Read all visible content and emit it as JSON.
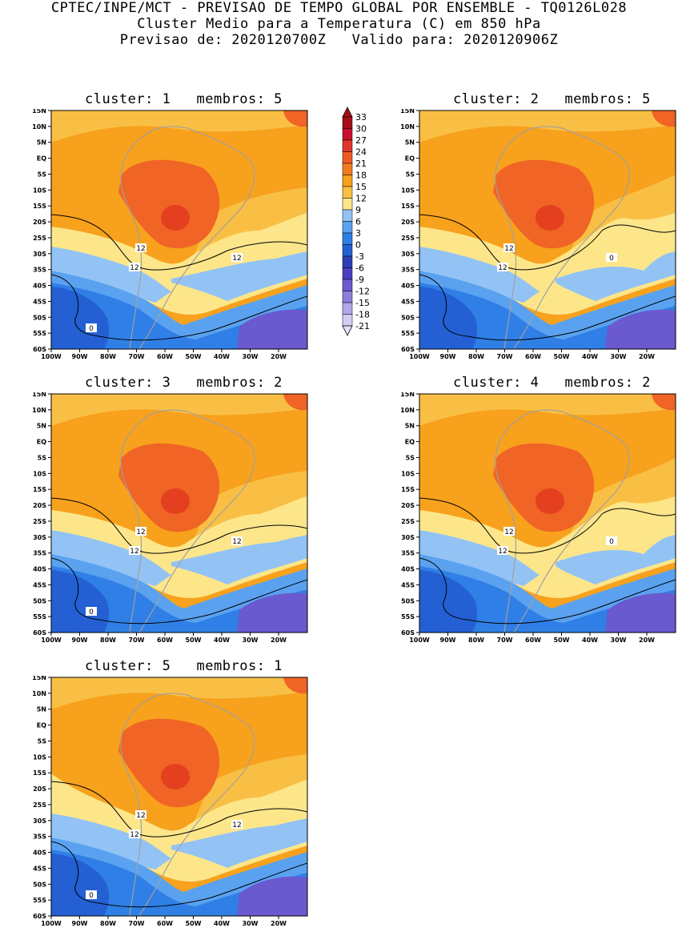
{
  "header": {
    "line1": "CPTEC/INPE/MCT - PREVISAO DE TEMPO GLOBAL POR ENSEMBLE - TQ0126L028",
    "line2": "Cluster Medio para a Temperatura (C) em 850 hPa",
    "line3": "Previsao de: 2020120700Z   Valido para: 2020120906Z"
  },
  "colorbar": {
    "labels": [
      "33",
      "30",
      "27",
      "24",
      "21",
      "18",
      "15",
      "12",
      "9",
      "6",
      "3",
      "0",
      "-3",
      "-6",
      "-9",
      "-12",
      "-15",
      "-18",
      "-21"
    ],
    "colors": [
      "#a50f15",
      "#c8102e",
      "#e0342b",
      "#f05a24",
      "#f47a1f",
      "#f7a11d",
      "#f9bf45",
      "#fde68a",
      "#93c3f5",
      "#5aa2f0",
      "#2f7fe6",
      "#2460d4",
      "#2a3fb6",
      "#4b3fbf",
      "#6a59cf",
      "#8b7fdc",
      "#b2a6ea",
      "#d4ccf4"
    ],
    "top_color": "#a50f15",
    "bottom_color": "#e5e0f8"
  },
  "axes": {
    "lat_labels": [
      "15N",
      "10N",
      "5N",
      "EQ",
      "5S",
      "10S",
      "15S",
      "20S",
      "25S",
      "30S",
      "35S",
      "40S",
      "45S",
      "50S",
      "55S",
      "60S"
    ],
    "lon_labels": [
      "100W",
      "90W",
      "80W",
      "70W",
      "60W",
      "50W",
      "40W",
      "30W",
      "20W"
    ]
  },
  "map_colors": {
    "hot_red": "#e44020",
    "red_orange": "#f06425",
    "orange": "#f7a11d",
    "light_orange": "#f9bf45",
    "yellow": "#fde68a",
    "light_blue": "#93c3f5",
    "blue": "#5aa2f0",
    "mid_blue": "#2f7fe6",
    "deep_blue": "#2460d4",
    "purple": "#6a59cf",
    "land": "#a0a0a0"
  },
  "panels": [
    {
      "title": "cluster: 1   membros: 5",
      "contour_labels": [
        "12",
        "12",
        "12",
        "0"
      ]
    },
    {
      "title": "cluster: 2   membros: 5",
      "contour_labels": [
        "12",
        "12",
        "0"
      ]
    },
    {
      "title": "cluster: 3   membros: 2",
      "contour_labels": [
        "12",
        "12",
        "12",
        "0"
      ]
    },
    {
      "title": "cluster: 4   membros: 2",
      "contour_labels": [
        "12",
        "12",
        "0"
      ]
    },
    {
      "title": "cluster: 5   membros: 1",
      "contour_labels": [
        "12",
        "12",
        "12",
        "0"
      ]
    }
  ]
}
